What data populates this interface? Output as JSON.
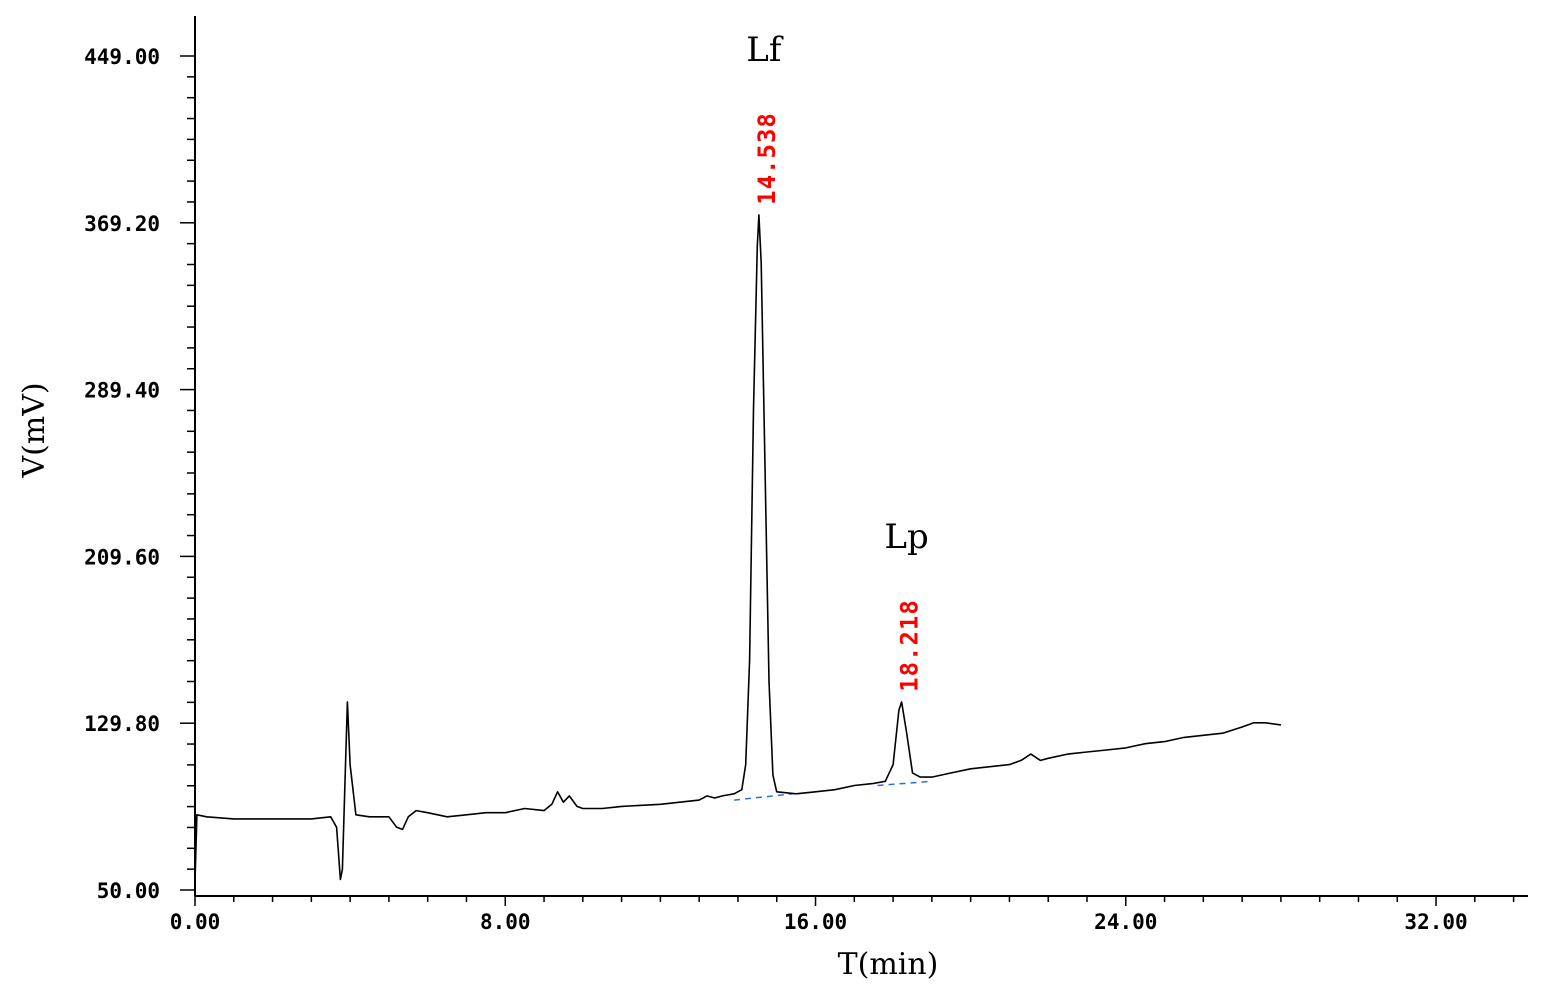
{
  "chart_data": {
    "type": "line",
    "xlabel": "T(min)",
    "ylabel": "V(mV)",
    "xlim": [
      0,
      34.5
    ],
    "ylim": [
      50,
      449
    ],
    "x_ticks": [
      "0.00",
      "8.00",
      "16.00",
      "24.00",
      "32.00"
    ],
    "y_ticks": [
      "50.00",
      "129.80",
      "209.60",
      "289.40",
      "369.20",
      "449.00"
    ],
    "x_tick_values": [
      0,
      8,
      16,
      24,
      32
    ],
    "y_tick_values": [
      50,
      129.8,
      209.6,
      289.4,
      369.2,
      449
    ],
    "grid": false,
    "series": [
      {
        "color": "#000000",
        "points": [
          [
            0.0,
            54
          ],
          [
            0.05,
            86
          ],
          [
            0.3,
            85
          ],
          [
            1.0,
            84
          ],
          [
            2.0,
            84
          ],
          [
            3.0,
            84
          ],
          [
            3.5,
            85
          ],
          [
            3.65,
            80
          ],
          [
            3.75,
            55
          ],
          [
            3.8,
            60
          ],
          [
            3.88,
            110
          ],
          [
            3.93,
            140
          ],
          [
            4.0,
            110
          ],
          [
            4.15,
            86
          ],
          [
            4.5,
            85
          ],
          [
            5.0,
            85
          ],
          [
            5.2,
            80
          ],
          [
            5.35,
            79
          ],
          [
            5.5,
            85
          ],
          [
            5.7,
            88
          ],
          [
            6.0,
            87
          ],
          [
            6.5,
            85
          ],
          [
            7.0,
            86
          ],
          [
            7.5,
            87
          ],
          [
            8.0,
            87
          ],
          [
            8.5,
            89
          ],
          [
            9.0,
            88
          ],
          [
            9.2,
            91
          ],
          [
            9.35,
            97
          ],
          [
            9.5,
            92
          ],
          [
            9.65,
            95
          ],
          [
            9.85,
            90
          ],
          [
            10.0,
            89
          ],
          [
            10.5,
            89
          ],
          [
            11.0,
            90
          ],
          [
            12.0,
            91
          ],
          [
            12.5,
            92
          ],
          [
            13.0,
            93
          ],
          [
            13.2,
            95
          ],
          [
            13.4,
            94
          ],
          [
            13.6,
            95
          ],
          [
            13.9,
            96
          ],
          [
            14.1,
            98
          ],
          [
            14.2,
            110
          ],
          [
            14.3,
            160
          ],
          [
            14.4,
            280
          ],
          [
            14.5,
            358
          ],
          [
            14.54,
            373
          ],
          [
            14.6,
            350
          ],
          [
            14.7,
            250
          ],
          [
            14.8,
            150
          ],
          [
            14.9,
            105
          ],
          [
            15.0,
            97
          ],
          [
            15.5,
            96
          ],
          [
            16.0,
            97
          ],
          [
            16.5,
            98
          ],
          [
            17.0,
            100
          ],
          [
            17.5,
            101
          ],
          [
            17.8,
            102
          ],
          [
            18.0,
            110
          ],
          [
            18.15,
            136
          ],
          [
            18.22,
            140
          ],
          [
            18.35,
            125
          ],
          [
            18.5,
            106
          ],
          [
            18.7,
            104
          ],
          [
            19.0,
            104
          ],
          [
            19.5,
            106
          ],
          [
            20.0,
            108
          ],
          [
            20.5,
            109
          ],
          [
            21.0,
            110
          ],
          [
            21.3,
            112
          ],
          [
            21.55,
            115
          ],
          [
            21.8,
            112
          ],
          [
            22.0,
            113
          ],
          [
            22.5,
            115
          ],
          [
            23.0,
            116
          ],
          [
            23.5,
            117
          ],
          [
            24.0,
            118
          ],
          [
            24.5,
            120
          ],
          [
            25.0,
            121
          ],
          [
            25.5,
            123
          ],
          [
            26.0,
            124
          ],
          [
            26.5,
            125
          ],
          [
            27.0,
            128
          ],
          [
            27.3,
            130
          ],
          [
            27.6,
            130
          ],
          [
            28.0,
            129
          ]
        ]
      }
    ],
    "baselines": [
      {
        "x": [
          13.9,
          15.4
        ],
        "y": [
          93,
          96
        ],
        "color": "#2f6fdb",
        "style": "dashed"
      },
      {
        "x": [
          17.6,
          19.0
        ],
        "y": [
          100,
          102
        ],
        "color": "#2f6fdb",
        "style": "dashed"
      }
    ],
    "peaks": [
      {
        "name": "Lf",
        "retention_time": "14.538",
        "x": 14.538,
        "y": 373
      },
      {
        "name": "Lp",
        "retention_time": "18.218",
        "x": 18.218,
        "y": 140
      }
    ]
  }
}
